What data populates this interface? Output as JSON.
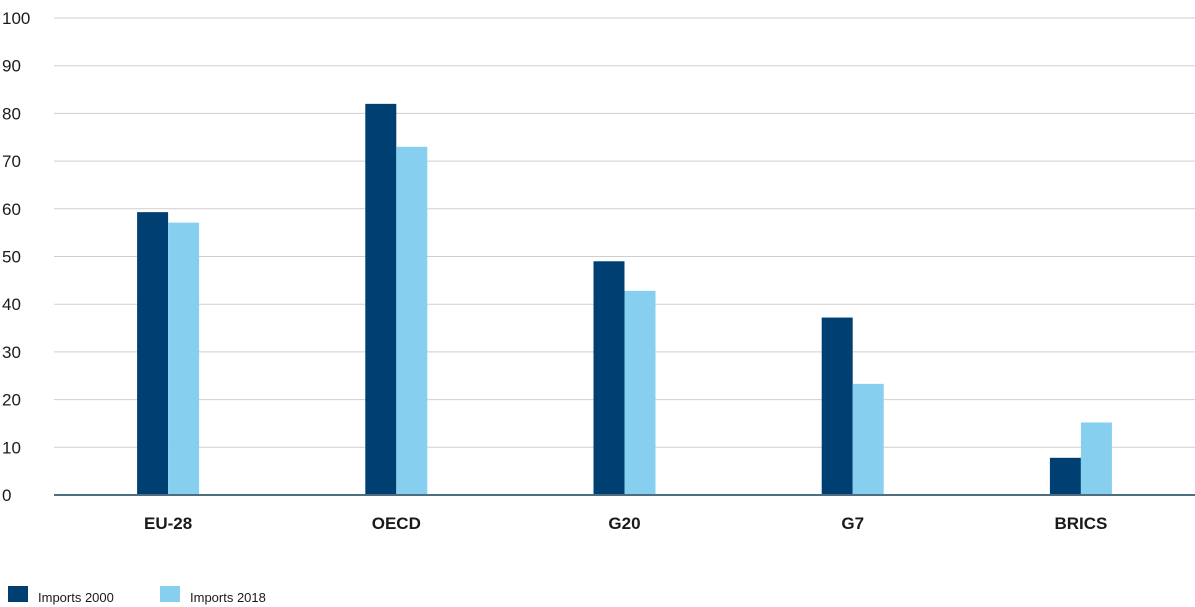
{
  "chart_data": {
    "type": "bar",
    "categories": [
      "EU-28",
      "OECD",
      "G20",
      "G7",
      "BRICS"
    ],
    "series": [
      {
        "name": "Imports 2000",
        "values": [
          59.3,
          82.0,
          49.0,
          37.2,
          7.8
        ],
        "color": "#003f72"
      },
      {
        "name": "Imports 2018",
        "values": [
          57.1,
          73.0,
          42.8,
          23.3,
          15.2
        ],
        "color": "#87cfef"
      }
    ],
    "title": "",
    "xlabel": "",
    "ylabel": "",
    "ylim": [
      0,
      100
    ],
    "yticks": [
      0,
      10,
      20,
      30,
      40,
      50,
      60,
      70,
      80,
      90,
      100
    ],
    "grid": true,
    "legend_position": "bottom-left"
  }
}
